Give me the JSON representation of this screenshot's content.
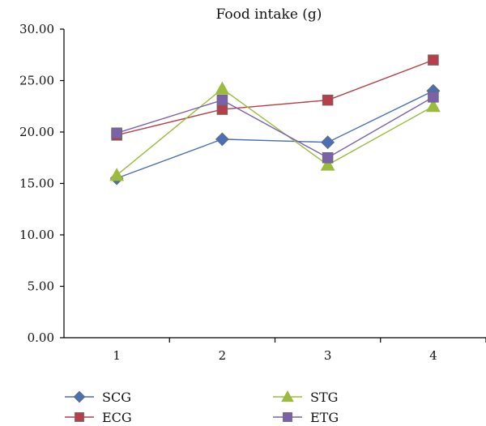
{
  "chart_data": {
    "type": "line",
    "title": "Food intake (g)",
    "xlabel": "",
    "ylabel": "",
    "categories": [
      "1",
      "2",
      "3",
      "4"
    ],
    "ylim": [
      0,
      30
    ],
    "yticks": [
      "0.00",
      "5.00",
      "10.00",
      "15.00",
      "20.00",
      "25.00",
      "30.00"
    ],
    "grid": false,
    "legend_position": "bottom",
    "series": [
      {
        "name": "SCG",
        "values": [
          15.5,
          19.3,
          19.0,
          24.0
        ],
        "color": "#4a6fb5",
        "marker": "diamond"
      },
      {
        "name": "ECG",
        "values": [
          19.7,
          22.2,
          23.1,
          27.0
        ],
        "color": "#b5404a",
        "marker": "square"
      },
      {
        "name": "STG",
        "values": [
          15.8,
          24.2,
          16.8,
          22.5
        ],
        "color": "#9bbb3e",
        "marker": "triangle"
      },
      {
        "name": "ETG",
        "values": [
          19.9,
          23.1,
          17.5,
          23.4
        ],
        "color": "#7b62a8",
        "marker": "square"
      }
    ]
  }
}
